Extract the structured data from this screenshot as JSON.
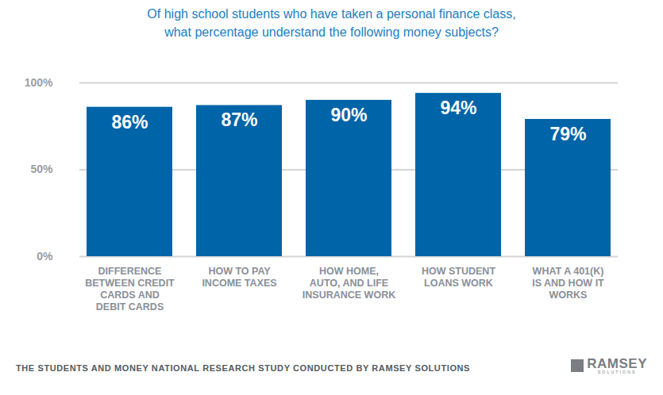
{
  "chart_data": {
    "type": "bar",
    "title": "Of high school students who have taken a personal finance class, what percentage understand the following money subjects?",
    "categories": [
      "DIFFERENCE BETWEEN CREDIT CARDS AND DEBIT CARDS",
      "HOW TO PAY INCOME TAXES",
      "HOW HOME, AUTO, AND LIFE INSURANCE WORK",
      "HOW STUDENT LOANS WORK",
      "WHAT A 401(K) IS AND HOW IT WORKS"
    ],
    "values": [
      86,
      87,
      90,
      94,
      79
    ],
    "value_labels": [
      "86%",
      "87%",
      "90%",
      "94%",
      "79%"
    ],
    "color": "#0064a8",
    "ylim": [
      0,
      100
    ],
    "yticks": [
      {
        "value": 0,
        "label": "0%"
      },
      {
        "value": 50,
        "label": "50%"
      },
      {
        "value": 100,
        "label": "100%"
      }
    ],
    "grid": true,
    "data_labels": true,
    "source": "THE STUDENTS AND MONEY NATIONAL RESEARCH STUDY CONDUCTED BY RAMSEY SOLUTIONS",
    "logo": "RAMSEY",
    "logo_subtitle": "SOLUTIONS"
  }
}
